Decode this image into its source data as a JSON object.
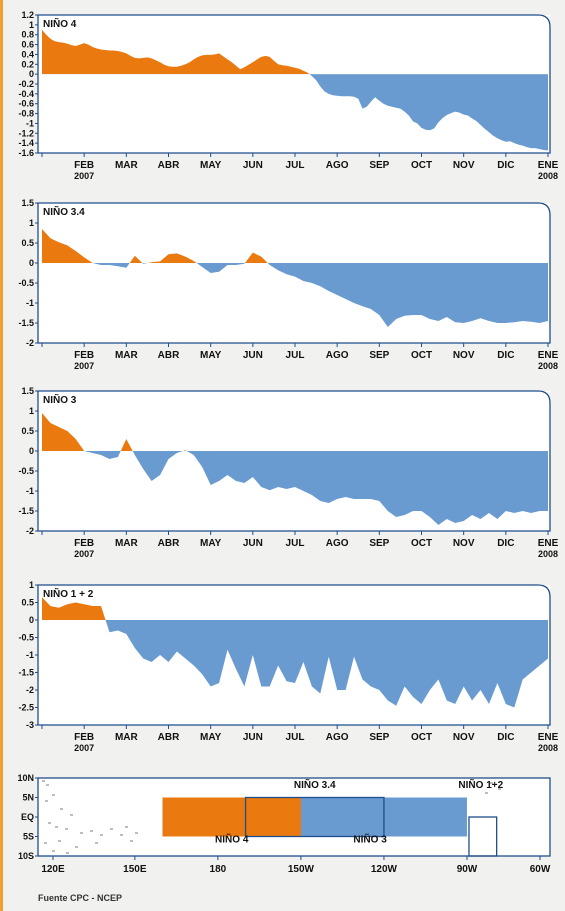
{
  "source": "Fuente CPC - NCEP",
  "colors": {
    "positive": "#ea7a0f",
    "negative": "#6a9bd0",
    "frame": "#1f4e8c"
  },
  "chart_data": [
    {
      "type": "area",
      "title": "NIÑO 4",
      "ylim": [
        -1.6,
        1.2
      ],
      "yticks": [
        "1.2",
        "1",
        "0.8",
        "0.6",
        "0.4",
        "0.2",
        "0",
        "-0.2",
        "-0.4",
        "-0.6",
        "-0.8",
        "-1",
        "-1.2",
        "-1.4",
        "-1.6"
      ],
      "xtick_labels": [
        "FEB",
        "MAR",
        "ABR",
        "MAY",
        "JUN",
        "JUL",
        "AGO",
        "SEP",
        "OCT",
        "NOV",
        "DIC",
        "ENE"
      ],
      "year_labels": [
        "2007",
        "2008"
      ],
      "x": [
        0,
        0.1,
        0.2,
        0.3,
        0.4,
        0.5,
        0.6,
        0.7,
        0.8,
        0.9,
        1,
        1.1,
        1.2,
        1.3,
        1.4,
        1.5,
        1.6,
        1.7,
        1.8,
        1.9,
        2,
        2.1,
        2.2,
        2.3,
        2.4,
        2.5,
        2.6,
        2.7,
        2.8,
        2.9,
        3,
        3.1,
        3.2,
        3.3,
        3.4,
        3.5,
        3.6,
        3.7,
        3.8,
        3.9,
        4,
        4.1,
        4.2,
        4.3,
        4.4,
        4.5,
        4.6,
        4.7,
        4.8,
        4.9,
        5,
        5.1,
        5.2,
        5.3,
        5.4,
        5.5,
        5.6,
        5.7,
        5.8,
        5.9,
        6,
        6.1,
        6.2,
        6.3,
        6.4,
        6.5,
        6.6,
        6.7,
        6.8,
        6.9,
        7,
        7.1,
        7.2,
        7.3,
        7.4,
        7.5,
        7.6,
        7.7,
        7.8,
        7.9,
        8,
        8.1,
        8.2,
        8.3,
        8.4,
        8.5,
        8.6,
        8.7,
        8.8,
        8.9,
        9,
        9.1,
        9.2,
        9.3,
        9.4,
        9.5,
        9.6,
        9.7,
        9.8,
        9.9,
        10,
        10.1,
        10.2,
        10.3,
        10.4,
        10.5,
        10.6,
        10.7,
        10.8,
        10.9,
        11,
        11.1,
        11.2,
        11.3,
        11.4,
        11.5,
        11.6,
        11.7,
        11.8,
        11.9,
        12
      ],
      "values": [
        0.9,
        0.8,
        0.72,
        0.67,
        0.65,
        0.64,
        0.62,
        0.59,
        0.57,
        0.6,
        0.63,
        0.6,
        0.55,
        0.52,
        0.5,
        0.49,
        0.48,
        0.48,
        0.47,
        0.45,
        0.42,
        0.37,
        0.33,
        0.32,
        0.33,
        0.34,
        0.32,
        0.28,
        0.24,
        0.19,
        0.16,
        0.15,
        0.15,
        0.17,
        0.2,
        0.24,
        0.3,
        0.35,
        0.38,
        0.39,
        0.39,
        0.4,
        0.42,
        0.36,
        0.3,
        0.24,
        0.17,
        0.1,
        0.14,
        0.19,
        0.24,
        0.3,
        0.35,
        0.37,
        0.35,
        0.27,
        0.2,
        0.18,
        0.17,
        0.15,
        0.13,
        0.11,
        0.07,
        0.03,
        -0.04,
        -0.12,
        -0.25,
        -0.35,
        -0.4,
        -0.43,
        -0.44,
        -0.45,
        -0.45,
        -0.45,
        -0.46,
        -0.5,
        -0.7,
        -0.66,
        -0.56,
        -0.47,
        -0.54,
        -0.6,
        -0.64,
        -0.66,
        -0.68,
        -0.7,
        -0.76,
        -0.84,
        -0.96,
        -1.0,
        -1.09,
        -1.13,
        -1.14,
        -1.1,
        -0.98,
        -0.89,
        -0.83,
        -0.79,
        -0.76,
        -0.78,
        -0.82,
        -0.84,
        -0.9,
        -0.95,
        -1.03,
        -1.11,
        -1.18,
        -1.25,
        -1.3,
        -1.34,
        -1.37,
        -1.36,
        -1.4,
        -1.43,
        -1.45,
        -1.48,
        -1.5,
        -1.5,
        -1.52,
        -1.54,
        -1.55
      ]
    },
    {
      "type": "area",
      "title": "NIÑO 3.4",
      "ylim": [
        -2,
        1.5
      ],
      "yticks": [
        "1.5",
        "1",
        "0.5",
        "0",
        "-0.5",
        "-1",
        "-1.5",
        "-2"
      ],
      "xtick_labels": [
        "FEB",
        "MAR",
        "ABR",
        "MAY",
        "JUN",
        "JUL",
        "AGO",
        "SEP",
        "OCT",
        "NOV",
        "DIC",
        "ENE"
      ],
      "year_labels": [
        "2007",
        "2008"
      ],
      "x": [
        0,
        0.2,
        0.4,
        0.6,
        0.8,
        1,
        1.2,
        1.4,
        1.6,
        1.8,
        2,
        2.2,
        2.4,
        2.6,
        2.8,
        3,
        3.2,
        3.4,
        3.6,
        3.8,
        4,
        4.2,
        4.4,
        4.6,
        4.8,
        5,
        5.2,
        5.4,
        5.6,
        5.8,
        6,
        6.2,
        6.4,
        6.6,
        6.8,
        7,
        7.2,
        7.4,
        7.6,
        7.8,
        8,
        8.2,
        8.4,
        8.6,
        8.8,
        9,
        9.2,
        9.4,
        9.6,
        9.8,
        10,
        10.2,
        10.4,
        10.6,
        10.8,
        11,
        11.2,
        11.4,
        11.6,
        11.8,
        12
      ],
      "values": [
        0.85,
        0.62,
        0.52,
        0.44,
        0.3,
        0.14,
        0,
        -0.05,
        -0.05,
        -0.08,
        -0.12,
        0.18,
        -0.02,
        0.02,
        0.04,
        0.22,
        0.24,
        0.16,
        0.05,
        -0.1,
        -0.25,
        -0.22,
        -0.05,
        -0.05,
        -0.02,
        0.26,
        0.16,
        -0.05,
        -0.18,
        -0.28,
        -0.34,
        -0.45,
        -0.5,
        -0.58,
        -0.7,
        -0.8,
        -0.9,
        -1.0,
        -1.08,
        -1.15,
        -1.3,
        -1.6,
        -1.4,
        -1.32,
        -1.3,
        -1.3,
        -1.4,
        -1.45,
        -1.35,
        -1.48,
        -1.5,
        -1.45,
        -1.38,
        -1.45,
        -1.5,
        -1.5,
        -1.48,
        -1.45,
        -1.47,
        -1.5,
        -1.45
      ]
    },
    {
      "type": "area",
      "title": "NIÑO 3",
      "ylim": [
        -2,
        1.5
      ],
      "yticks": [
        "1.5",
        "1",
        "0.5",
        "0",
        "-0.5",
        "-1",
        "-1.5",
        "-2"
      ],
      "xtick_labels": [
        "FEB",
        "MAR",
        "ABR",
        "MAY",
        "JUN",
        "JUL",
        "AGO",
        "SEP",
        "OCT",
        "NOV",
        "DIC",
        "ENE"
      ],
      "year_labels": [
        "2007",
        "2008"
      ],
      "x": [
        0,
        0.2,
        0.4,
        0.6,
        0.8,
        1,
        1.2,
        1.4,
        1.6,
        1.8,
        2,
        2.2,
        2.4,
        2.6,
        2.8,
        3,
        3.2,
        3.4,
        3.6,
        3.8,
        4,
        4.2,
        4.4,
        4.6,
        4.8,
        5,
        5.2,
        5.4,
        5.6,
        5.8,
        6,
        6.2,
        6.4,
        6.6,
        6.8,
        7,
        7.2,
        7.4,
        7.6,
        7.8,
        8,
        8.2,
        8.4,
        8.6,
        8.8,
        9,
        9.2,
        9.4,
        9.6,
        9.8,
        10,
        10.2,
        10.4,
        10.6,
        10.8,
        11,
        11.2,
        11.4,
        11.6,
        11.8,
        12
      ],
      "values": [
        0.95,
        0.7,
        0.6,
        0.5,
        0.3,
        0.0,
        -0.05,
        -0.1,
        -0.2,
        -0.15,
        0.3,
        -0.1,
        -0.45,
        -0.75,
        -0.6,
        -0.2,
        -0.05,
        0.02,
        -0.1,
        -0.4,
        -0.85,
        -0.75,
        -0.6,
        -0.75,
        -0.8,
        -0.65,
        -0.9,
        -0.98,
        -0.9,
        -0.95,
        -0.9,
        -1.0,
        -1.1,
        -1.25,
        -1.3,
        -1.2,
        -1.15,
        -1.2,
        -1.2,
        -1.2,
        -1.25,
        -1.5,
        -1.65,
        -1.6,
        -1.5,
        -1.5,
        -1.65,
        -1.85,
        -1.7,
        -1.8,
        -1.75,
        -1.6,
        -1.7,
        -1.55,
        -1.7,
        -1.5,
        -1.55,
        -1.5,
        -1.55,
        -1.5,
        -1.5
      ]
    },
    {
      "type": "area",
      "title": "NIÑO 1 + 2",
      "ylim": [
        -3,
        1
      ],
      "yticks": [
        "1",
        "0.5",
        "0",
        "-0.5",
        "-1",
        "-1.5",
        "-2",
        "-2.5",
        "-3"
      ],
      "xtick_labels": [
        "FEB",
        "MAR",
        "ABR",
        "MAY",
        "JUN",
        "JUL",
        "AGO",
        "SEP",
        "OCT",
        "NOV",
        "DIC",
        "ENE"
      ],
      "year_labels": [
        "2007",
        "2008"
      ],
      "x": [
        0,
        0.2,
        0.4,
        0.6,
        0.8,
        1,
        1.2,
        1.4,
        1.6,
        1.8,
        2,
        2.2,
        2.4,
        2.6,
        2.8,
        3,
        3.2,
        3.4,
        3.6,
        3.8,
        4,
        4.2,
        4.4,
        4.6,
        4.8,
        5,
        5.2,
        5.4,
        5.6,
        5.8,
        6,
        6.2,
        6.4,
        6.6,
        6.8,
        7,
        7.2,
        7.4,
        7.6,
        7.8,
        8,
        8.2,
        8.4,
        8.6,
        8.8,
        9,
        9.2,
        9.4,
        9.6,
        9.8,
        10,
        10.2,
        10.4,
        10.6,
        10.8,
        11,
        11.2,
        11.4,
        11.6,
        11.8,
        12
      ],
      "values": [
        0.65,
        0.4,
        0.35,
        0.45,
        0.5,
        0.45,
        0.4,
        0.4,
        -0.35,
        -0.3,
        -0.4,
        -0.8,
        -1.1,
        -1.2,
        -1.0,
        -1.2,
        -0.9,
        -1.1,
        -1.3,
        -1.55,
        -1.9,
        -1.8,
        -0.85,
        -1.4,
        -1.9,
        -1.0,
        -1.9,
        -1.9,
        -1.3,
        -1.75,
        -1.8,
        -1.2,
        -1.9,
        -2.1,
        -1.05,
        -2.0,
        -2.0,
        -1.05,
        -1.7,
        -1.9,
        -2.0,
        -2.3,
        -2.45,
        -1.9,
        -2.2,
        -2.4,
        -2.0,
        -1.7,
        -2.3,
        -2.4,
        -1.9,
        -2.3,
        -2.0,
        -2.4,
        -1.8,
        -2.4,
        -2.5,
        -1.7,
        -1.5,
        -1.3,
        -1.1
      ]
    }
  ],
  "map": {
    "lat_labels": [
      "10N",
      "5N",
      "EQ",
      "5S",
      "10S"
    ],
    "lon_labels": [
      "120E",
      "150E",
      "180",
      "150W",
      "120W",
      "90W",
      "60W"
    ],
    "regions": [
      {
        "name": "NIÑO 4",
        "lon": [
          160,
          210
        ],
        "lat": [
          -5,
          5
        ]
      },
      {
        "name": "NIÑO 3.4",
        "lon": [
          190,
          240
        ],
        "lat": [
          -5,
          5
        ]
      },
      {
        "name": "NIÑO 3",
        "lon": [
          210,
          270
        ],
        "lat": [
          -5,
          5
        ]
      },
      {
        "name": "NIÑO 1+2",
        "lon": [
          270,
          280
        ],
        "lat": [
          -10,
          0
        ]
      }
    ]
  }
}
